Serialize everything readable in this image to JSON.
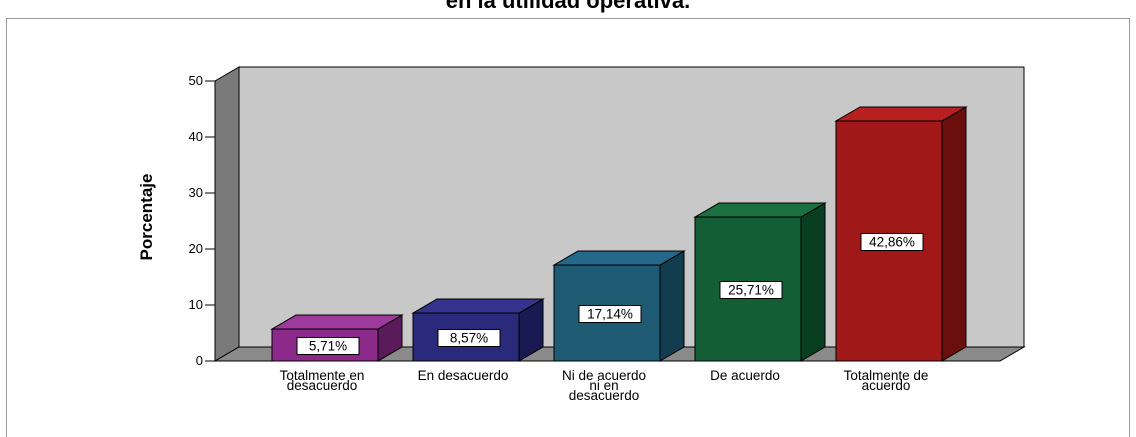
{
  "title": "en la utilidad operativa.",
  "chart_data": {
    "type": "bar",
    "categories": [
      [
        "Totalmente en",
        "desacuerdo"
      ],
      [
        "En desacuerdo"
      ],
      [
        "Ni de acuerdo",
        "ni en",
        "desacuerdo"
      ],
      [
        "De acuerdo"
      ],
      [
        "Totalmente de",
        "acuerdo"
      ]
    ],
    "values": [
      5.71,
      8.57,
      17.14,
      25.71,
      42.86
    ],
    "data_labels": [
      "5,71%",
      "8,57%",
      "17,14%",
      "25,71%",
      "42,86%"
    ],
    "ylabel": "Porcentaje",
    "xlabel": "",
    "ylim": [
      0,
      50
    ],
    "yticks": [
      "0",
      "10",
      "20",
      "30",
      "40",
      "50"
    ],
    "colors": [
      "#8B2A88",
      "#2A2A7C",
      "#1E5B73",
      "#135E34",
      "#A01818"
    ],
    "side_colors": [
      "#5B1A5A",
      "#1A1A52",
      "#123D4E",
      "#0A3E21",
      "#6A0E0E"
    ],
    "top_colors": [
      "#9E3A9C",
      "#34348E",
      "#24698A",
      "#1A7040",
      "#B82020"
    ],
    "wall_color": "#C8C8C8",
    "floor_color": "#8A8A8A",
    "grid": false,
    "bar_style": "3d"
  }
}
